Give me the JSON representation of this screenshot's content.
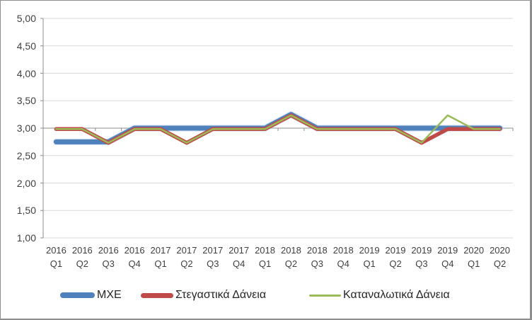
{
  "chart_data": {
    "type": "line",
    "title": "",
    "xlabel": "",
    "ylabel": "",
    "grid": "horizontal",
    "legend_position": "bottom",
    "decimal_separator": ",",
    "ylim": [
      1.0,
      5.0
    ],
    "ytick_step": 0.5,
    "ytick_labels": [
      "5,00",
      "4,50",
      "4,00",
      "3,50",
      "3,00",
      "2,50",
      "2,00",
      "1,50",
      "1,00"
    ],
    "category_axis_crosses_at": 3.0,
    "categories": [
      {
        "year": "2016",
        "quarter": "Q1"
      },
      {
        "year": "2016",
        "quarter": "Q2"
      },
      {
        "year": "2016",
        "quarter": "Q3"
      },
      {
        "year": "2016",
        "quarter": "Q4"
      },
      {
        "year": "2017",
        "quarter": "Q1"
      },
      {
        "year": "2017",
        "quarter": "Q2"
      },
      {
        "year": "2017",
        "quarter": "Q3"
      },
      {
        "year": "2017",
        "quarter": "Q4"
      },
      {
        "year": "2018",
        "quarter": "Q1"
      },
      {
        "year": "2018",
        "quarter": "Q2"
      },
      {
        "year": "2018",
        "quarter": "Q3"
      },
      {
        "year": "2018",
        "quarter": "Q4"
      },
      {
        "year": "2019",
        "quarter": "Q1"
      },
      {
        "year": "2019",
        "quarter": "Q2"
      },
      {
        "year": "2019",
        "quarter": "Q3"
      },
      {
        "year": "2019",
        "quarter": "Q4"
      },
      {
        "year": "2020",
        "quarter": "Q1"
      },
      {
        "year": "2020",
        "quarter": "Q2"
      }
    ],
    "series": [
      {
        "name": "ΜΧΕ",
        "color": "#4F81BD",
        "values": [
          2.75,
          2.75,
          2.75,
          3.0,
          3.0,
          3.0,
          3.0,
          3.0,
          3.0,
          3.25,
          3.0,
          3.0,
          3.0,
          3.0,
          3.0,
          3.0,
          3.0,
          3.0
        ]
      },
      {
        "name": "Στεγαστικά Δάνεια",
        "color": "#BE4B48",
        "values": [
          3.0,
          3.0,
          2.75,
          3.0,
          3.0,
          2.75,
          3.0,
          3.0,
          3.0,
          3.25,
          3.0,
          3.0,
          3.0,
          3.0,
          2.75,
          3.0,
          3.0,
          3.0
        ]
      },
      {
        "name": "Καταναλωτικά Δάνεια",
        "color": "#9BBB59",
        "values": [
          3.0,
          3.0,
          2.75,
          3.0,
          3.0,
          2.75,
          3.0,
          3.0,
          3.0,
          3.25,
          3.0,
          3.0,
          3.0,
          3.0,
          2.75,
          3.25,
          3.0,
          3.0
        ]
      }
    ]
  },
  "colors": {
    "background": "#FFFFFF",
    "frame_border": "#8E8E8E",
    "gridline": "#D9D9D9",
    "axis": "#8C8C8C",
    "axis_text": "#3F3F3F",
    "legend_text": "#262626",
    "series_blue_halo": "#BCD0E8"
  }
}
